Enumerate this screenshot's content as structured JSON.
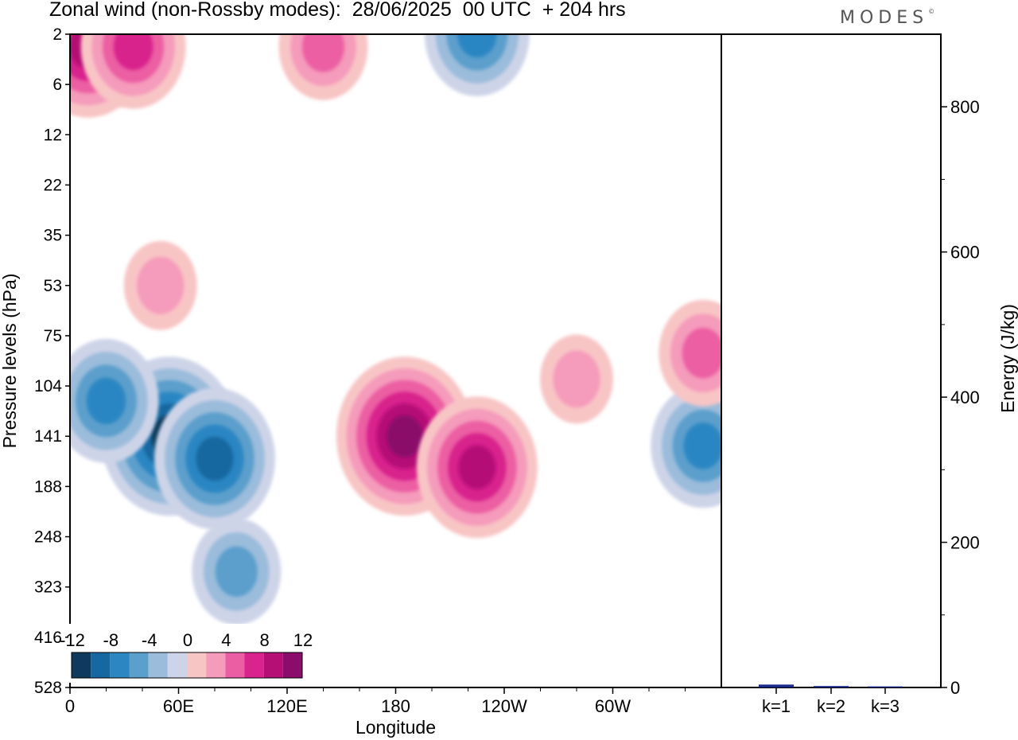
{
  "header": {
    "title": "Zonal wind (non-Rossby modes):  28/06/2025  00 UTC  + 204 hrs",
    "brand": "MODES",
    "brand_mark": "©"
  },
  "colors": {
    "negative_palette": [
      "#0f3a5c",
      "#1668a0",
      "#2c86c2",
      "#5b9fcc",
      "#9bbcdb",
      "#ced4e8"
    ],
    "positive_palette": [
      "#f8c5c5",
      "#f59bbb",
      "#ec5ea3",
      "#d8248c",
      "#b50f76",
      "#8a0c6b"
    ],
    "bar_color": "#1a2a8a"
  },
  "chart_data": [
    {
      "type": "heatmap",
      "title": "Zonal wind (non-Rossby modes):  28/06/2025  00 UTC  + 204 hrs",
      "xlabel": "Longitude",
      "ylabel": "Pressure levels (hPa)",
      "x_ticks": [
        "0",
        "60E",
        "120E",
        "180",
        "120W",
        "60W"
      ],
      "x_tick_degrees": [
        0,
        60,
        120,
        180,
        240,
        300
      ],
      "xlim": [
        0,
        360
      ],
      "y_ticks": [
        "2",
        "6",
        "12",
        "22",
        "35",
        "53",
        "75",
        "104",
        "141",
        "188",
        "248",
        "323",
        "416",
        "528"
      ],
      "colorbar": {
        "labels": [
          "-12",
          "-8",
          "-4",
          "0",
          "4",
          "8",
          "12"
        ],
        "levels": [
          -12,
          -10,
          -8,
          -6,
          -4,
          -2,
          0,
          2,
          4,
          6,
          8,
          10,
          12
        ]
      },
      "features": [
        {
          "lon": 55,
          "level": 141,
          "value": -12
        },
        {
          "lon": 80,
          "level": 162,
          "value": -9
        },
        {
          "lon": 20,
          "level": 115,
          "value": -8
        },
        {
          "lon": 92,
          "level": 300,
          "value": -6
        },
        {
          "lon": 350,
          "level": 150,
          "value": -8
        },
        {
          "lon": 225,
          "level": 2,
          "value": -8
        },
        {
          "lon": 185,
          "level": 141,
          "value": 12
        },
        {
          "lon": 225,
          "level": 170,
          "value": 10
        },
        {
          "lon": 10,
          "level": 3,
          "value": 10
        },
        {
          "lon": 35,
          "level": 3,
          "value": 8
        },
        {
          "lon": 140,
          "level": 3,
          "value": 6
        },
        {
          "lon": 350,
          "level": 85,
          "value": 6
        },
        {
          "lon": 280,
          "level": 100,
          "value": 4
        },
        {
          "lon": 50,
          "level": 53,
          "value": 4
        }
      ]
    },
    {
      "type": "bar",
      "categories": [
        "k=1",
        "k=2",
        "k=3"
      ],
      "values": [
        4,
        2,
        1.5
      ],
      "ylabel": "Energy (J/kg)",
      "ylim": [
        0,
        900
      ],
      "y_ticks": [
        0,
        200,
        400,
        600,
        800
      ]
    }
  ]
}
